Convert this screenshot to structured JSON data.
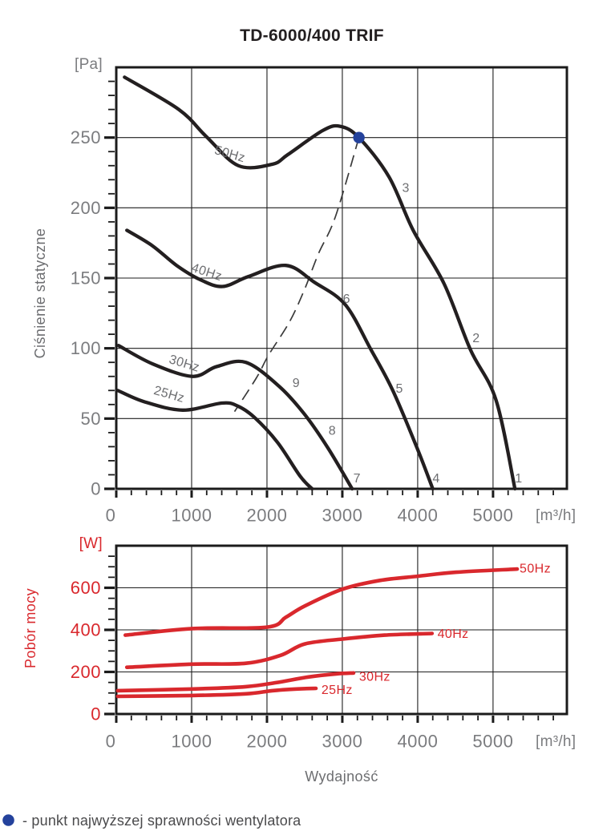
{
  "title": "TD-6000/400 TRIF",
  "legend": {
    "text": "- punkt najwyższej sprawności wentylatora"
  },
  "colors": {
    "accent_red": "#d9282d",
    "accent_blue": "#24429c",
    "curve_black": "#231f20",
    "frame_black": "#1b1b1b",
    "text_gray": "#7b7c7f",
    "dash_gray": "#3a3a3a"
  },
  "chart_data": [
    {
      "type": "line",
      "name": "static-pressure-curves",
      "ylabel": "Ciśnienie statyczne",
      "y_unit": "[Pa]",
      "x_unit": "[m³/h]",
      "xlabel": "",
      "xlim": [
        0,
        5980
      ],
      "ylim": [
        0,
        300
      ],
      "x_ticks": [
        0,
        1000,
        2000,
        3000,
        4000,
        5000
      ],
      "y_ticks": [
        0,
        50,
        100,
        150,
        200,
        250
      ],
      "x_minor_step": 200,
      "y_minor_step": 10,
      "grid": true,
      "series": [
        {
          "name": "50Hz",
          "color_key": "curve_black",
          "points": [
            [
              110,
              293
            ],
            [
              830,
              270
            ],
            [
              1190,
              251
            ],
            [
              1620,
              230
            ],
            [
              2070,
              231
            ],
            [
              2280,
              238
            ],
            [
              2740,
              255
            ],
            [
              2970,
              258
            ],
            [
              3220,
              250
            ],
            [
              3620,
              222
            ],
            [
              3940,
              184
            ],
            [
              4350,
              146
            ],
            [
              4700,
              99
            ],
            [
              5040,
              63
            ],
            [
              5290,
              0
            ]
          ]
        },
        {
          "name": "40Hz",
          "color_key": "curve_black",
          "points": [
            [
              140,
              184
            ],
            [
              480,
              173
            ],
            [
              800,
              159
            ],
            [
              1110,
              149
            ],
            [
              1410,
              144
            ],
            [
              1750,
              151
            ],
            [
              2250,
              159
            ],
            [
              2630,
              147
            ],
            [
              3040,
              131
            ],
            [
              3380,
              99
            ],
            [
              3670,
              70
            ],
            [
              4000,
              28
            ],
            [
              4200,
              0
            ]
          ]
        },
        {
          "name": "30Hz",
          "color_key": "curve_black",
          "points": [
            [
              30,
              102
            ],
            [
              480,
              89
            ],
            [
              1010,
              80
            ],
            [
              1330,
              87
            ],
            [
              1720,
              90
            ],
            [
              2160,
              73
            ],
            [
              2500,
              53
            ],
            [
              2810,
              29
            ],
            [
              3130,
              0
            ]
          ]
        },
        {
          "name": "25Hz",
          "color_key": "curve_black",
          "points": [
            [
              20,
              70
            ],
            [
              370,
              62
            ],
            [
              880,
              56
            ],
            [
              1400,
              61
            ],
            [
              1610,
              59
            ],
            [
              1830,
              51
            ],
            [
              2140,
              33
            ],
            [
              2440,
              9
            ],
            [
              2600,
              0
            ]
          ]
        }
      ],
      "efficiency_line": {
        "style": "dashed",
        "points": [
          [
            3220,
            250
          ],
          [
            2910,
            194
          ],
          [
            2680,
            167
          ],
          [
            2500,
            142
          ],
          [
            2300,
            119
          ],
          [
            2020,
            95
          ],
          [
            1860,
            79
          ],
          [
            1570,
            55
          ]
        ]
      },
      "efficiency_point": {
        "x": 3220,
        "y": 250
      },
      "annotations": [
        {
          "text": "50Hz",
          "x": 1507,
          "y": 238,
          "angle": 16
        },
        {
          "text": "40Hz",
          "x": 1199,
          "y": 154,
          "angle": 18
        },
        {
          "text": "30Hz",
          "x": 902,
          "y": 89,
          "angle": 17
        },
        {
          "text": "25Hz",
          "x": 700,
          "y": 67,
          "angle": 16
        },
        {
          "text": "3",
          "x": 3843,
          "y": 214
        },
        {
          "text": "2",
          "x": 4777,
          "y": 107
        },
        {
          "text": "1",
          "x": 5340,
          "y": 7
        },
        {
          "text": "6",
          "x": 3057,
          "y": 135
        },
        {
          "text": "5",
          "x": 3758,
          "y": 71
        },
        {
          "text": "4",
          "x": 4246,
          "y": 7
        },
        {
          "text": "9",
          "x": 2388,
          "y": 75
        },
        {
          "text": "8",
          "x": 2866,
          "y": 41
        },
        {
          "text": "7",
          "x": 3195,
          "y": 7
        }
      ]
    },
    {
      "type": "line",
      "name": "power-consumption-curves",
      "ylabel": "Pobór mocy",
      "y_unit": "[W]",
      "x_unit": "[m³/h]",
      "xlabel": "Wydajność",
      "xlim": [
        0,
        5980
      ],
      "ylim": [
        0,
        800
      ],
      "x_ticks": [
        0,
        1000,
        2000,
        3000,
        4000,
        5000
      ],
      "y_ticks": [
        0,
        200,
        400,
        600
      ],
      "x_minor_step": 200,
      "y_minor_step": 50,
      "grid": true,
      "series": [
        {
          "name": "50Hz",
          "color_key": "accent_red",
          "points": [
            [
              120,
              375
            ],
            [
              1010,
              406
            ],
            [
              2000,
              413
            ],
            [
              2250,
              460
            ],
            [
              2500,
              513
            ],
            [
              3000,
              593
            ],
            [
              3500,
              635
            ],
            [
              4000,
              655
            ],
            [
              4510,
              674
            ],
            [
              5320,
              689
            ]
          ]
        },
        {
          "name": "40Hz",
          "color_key": "accent_red",
          "points": [
            [
              140,
              222
            ],
            [
              1010,
              237
            ],
            [
              1720,
              241
            ],
            [
              2180,
              279
            ],
            [
              2500,
              333
            ],
            [
              3000,
              356
            ],
            [
              3560,
              375
            ],
            [
              4190,
              383
            ]
          ]
        },
        {
          "name": "30Hz",
          "color_key": "accent_red",
          "points": [
            [
              20,
              111
            ],
            [
              1010,
              119
            ],
            [
              1720,
              130
            ],
            [
              2120,
              149
            ],
            [
              2550,
              176
            ],
            [
              2920,
              191
            ],
            [
              3150,
              195
            ]
          ]
        },
        {
          "name": "25Hz",
          "color_key": "accent_red",
          "points": [
            [
              20,
              84
            ],
            [
              1010,
              88
            ],
            [
              1720,
              96
            ],
            [
              2070,
              111
            ],
            [
              2390,
              119
            ],
            [
              2650,
              122
            ]
          ]
        }
      ],
      "annotations": [
        {
          "text": "50Hz",
          "x": 5560,
          "y": 689,
          "color": "red"
        },
        {
          "text": "40Hz",
          "x": 4470,
          "y": 379,
          "color": "red"
        },
        {
          "text": "30Hz",
          "x": 3430,
          "y": 176,
          "color": "red"
        },
        {
          "text": "25Hz",
          "x": 2930,
          "y": 113,
          "color": "red"
        }
      ]
    }
  ]
}
